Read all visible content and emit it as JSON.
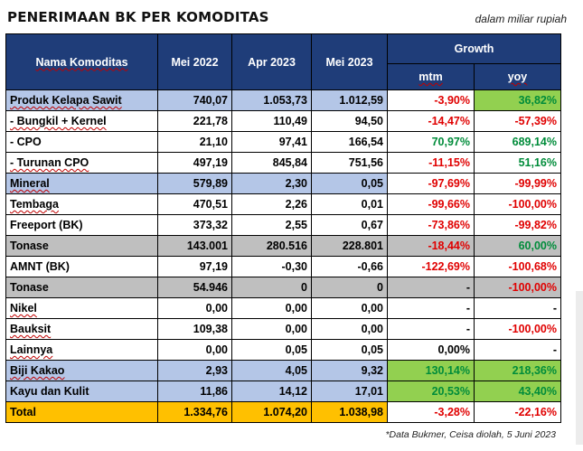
{
  "title": "PENERIMAAN BK PER KOMODITAS",
  "unit_note": "dalam miliar rupiah",
  "footnote": "*Data Bukmer, Ceisa diolah, 5 Juni 2023",
  "headers": {
    "name": "Nama Komoditas",
    "c1": "Mei 2022",
    "c2": "Apr 2023",
    "c3": "Mei 2023",
    "growth": "Growth",
    "mtm": "mtm",
    "yoy": "yoy"
  },
  "rows": [
    {
      "name": "Produk Kelapa Sawit",
      "c1": "740,07",
      "c2": "1.053,73",
      "c3": "1.012,59",
      "mtm": "-3,90%",
      "yoy": "36,82%"
    },
    {
      "name": "- Bungkil + Kernel",
      "c1": "221,78",
      "c2": "110,49",
      "c3": "94,50",
      "mtm": "-14,47%",
      "yoy": "-57,39%"
    },
    {
      "name": "- CPO",
      "c1": "21,10",
      "c2": "97,41",
      "c3": "166,54",
      "mtm": "70,97%",
      "yoy": "689,14%"
    },
    {
      "name": "- Turunan CPO",
      "c1": "497,19",
      "c2": "845,84",
      "c3": "751,56",
      "mtm": "-11,15%",
      "yoy": "51,16%"
    },
    {
      "name": "Mineral",
      "c1": "579,89",
      "c2": "2,30",
      "c3": "0,05",
      "mtm": "-97,69%",
      "yoy": "-99,99%"
    },
    {
      "name": "Tembaga",
      "c1": "470,51",
      "c2": "2,26",
      "c3": "0,01",
      "mtm": "-99,66%",
      "yoy": "-100,00%"
    },
    {
      "name": "Freeport (BK)",
      "c1": "373,32",
      "c2": "2,55",
      "c3": "0,67",
      "mtm": "-73,86%",
      "yoy": "-99,82%"
    },
    {
      "name": "Tonase",
      "c1": "143.001",
      "c2": "280.516",
      "c3": "228.801",
      "mtm": "-18,44%",
      "yoy": "60,00%"
    },
    {
      "name": "AMNT (BK)",
      "c1": "97,19",
      "c2": "-0,30",
      "c3": "-0,66",
      "mtm": "-122,69%",
      "yoy": "-100,68%"
    },
    {
      "name": "Tonase",
      "c1": "54.946",
      "c2": "0",
      "c3": "0",
      "mtm": "-",
      "yoy": "-100,00%"
    },
    {
      "name": "Nikel",
      "c1": "0,00",
      "c2": "0,00",
      "c3": "0,00",
      "mtm": "-",
      "yoy": "-"
    },
    {
      "name": "Bauksit",
      "c1": "109,38",
      "c2": "0,00",
      "c3": "0,00",
      "mtm": "-",
      "yoy": "-100,00%"
    },
    {
      "name": "Lainnya",
      "c1": "0,00",
      "c2": "0,05",
      "c3": "0,05",
      "mtm": "0,00%",
      "yoy": "-"
    },
    {
      "name": "Biji Kakao",
      "c1": "2,93",
      "c2": "4,05",
      "c3": "9,32",
      "mtm": "130,14%",
      "yoy": "218,36%"
    },
    {
      "name": "Kayu dan Kulit",
      "c1": "11,86",
      "c2": "14,12",
      "c3": "17,01",
      "mtm": "20,53%",
      "yoy": "43,40%"
    },
    {
      "name": "Total",
      "c1": "1.334,76",
      "c2": "1.074,20",
      "c3": "1.038,98",
      "mtm": "-3,28%",
      "yoy": "-22,16%"
    }
  ],
  "colors": {
    "header": "#1f3d79",
    "group_blue": "#b4c6e7",
    "tonase_grey": "#bfbfbf",
    "total_gold": "#ffc000",
    "growth_green_cell": "#92d050",
    "negative": "#e00000",
    "positive": "#008c3a"
  }
}
